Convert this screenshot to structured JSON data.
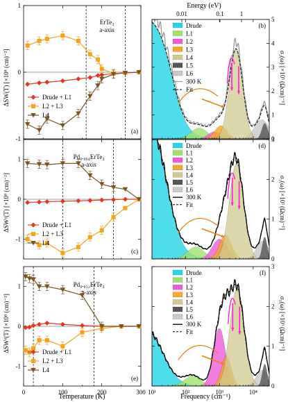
{
  "figure": {
    "left_xlabel": "Temperature (K)",
    "right_xlabel": "Frequency (cm⁻¹)",
    "top_axis_label": "Energy (eV)",
    "top_ticks": [
      "0.01",
      "0.1",
      "1"
    ],
    "left_ylabel": "ΔSW(T) [×10⁸ (cm)⁻²]",
    "left_ylabel_alt": "ΔSWᵈ(T) [×10⁸ (cm)⁻²]",
    "right_ylabel": "σ₁(ω) [×10³ (Ωcm)⁻¹]",
    "temp_ticks": [
      "0",
      "100",
      "200",
      "300"
    ],
    "freq_ticks": [
      "10¹",
      "10²",
      "10³",
      "10⁴"
    ]
  },
  "colors": {
    "drude_l1": "#e8341f",
    "l2_l3": "#f5a21e",
    "l4": "#7a5523",
    "drude_fill": "#22d6e6",
    "l1_fill": "#9fe26a",
    "l2_fill": "#ee5cd8",
    "l3_fill": "#f5a623",
    "l4_fill": "#cfc98f",
    "l5_fill": "#555555",
    "l6_fill": "#c8c8c8",
    "arrow_magenta": "#ff1ed2",
    "arrow_orange": "#f07f10"
  },
  "chart_data": [
    {
      "type": "scatter",
      "panel": "(a)",
      "title": "ErTe₃",
      "subtitle": "a-axis",
      "xlabel": "Temperature (K)",
      "ylabel": "ΔSW(T) [×10⁸ (cm)⁻²]",
      "xlim": [
        0,
        300
      ],
      "ylim": [
        -1,
        1
      ],
      "yticks": [
        "1",
        "0",
        "-1"
      ],
      "vlines": [
        160,
        260
      ],
      "series": [
        {
          "name": "Drude + L1",
          "x": [
            10,
            40,
            60,
            100,
            140,
            170,
            190,
            200,
            230,
            260,
            295
          ],
          "y": [
            -0.18,
            -0.16,
            -0.15,
            -0.13,
            -0.1,
            -0.08,
            -0.05,
            -0.04,
            -0.02,
            -0.01,
            0.0
          ]
        },
        {
          "name": "L2 + L3",
          "x": [
            10,
            40,
            60,
            100,
            140,
            170,
            190,
            200,
            230,
            260,
            295
          ],
          "y": [
            0.4,
            0.47,
            0.5,
            0.55,
            0.47,
            0.27,
            0.19,
            0.05,
            -0.02,
            -0.01,
            0.0
          ]
        },
        {
          "name": "L4",
          "x": [
            10,
            40,
            60,
            100,
            140,
            170,
            190,
            200,
            230,
            260,
            295
          ],
          "y": [
            -0.78,
            -0.87,
            -0.7,
            -0.8,
            -0.62,
            -0.36,
            -0.2,
            -0.1,
            -0.03,
            -0.01,
            0.0
          ]
        }
      ]
    },
    {
      "type": "scatter",
      "panel": "(c)",
      "title": "Pd₀.₀₀₄ErTe₃",
      "subtitle": "a-axis",
      "xlabel": "Temperature (K)",
      "ylabel": "ΔSWᵈ(T) [×10⁸ (cm)⁻²]",
      "xlim": [
        0,
        300
      ],
      "ylim": [
        -1.5,
        1.5
      ],
      "yticks": [
        "1",
        "0",
        "-1"
      ],
      "vlines": [
        100,
        230
      ],
      "series": [
        {
          "name": "Drude + L1",
          "x": [
            10,
            40,
            60,
            100,
            140,
            170,
            200,
            230,
            260,
            295
          ],
          "y": [
            -0.08,
            -0.07,
            -0.06,
            -0.05,
            -0.04,
            -0.03,
            -0.02,
            -0.01,
            0.0,
            0.0
          ]
        },
        {
          "name": "L2 + L3",
          "x": [
            10,
            40,
            60,
            100,
            140,
            170,
            200,
            230,
            260,
            295
          ],
          "y": [
            -1.0,
            -1.15,
            -1.1,
            -1.35,
            -1.2,
            -0.95,
            -0.78,
            -0.45,
            -0.22,
            0.0
          ]
        },
        {
          "name": "L4",
          "x": [
            10,
            40,
            60,
            100,
            140,
            170,
            200,
            230,
            260,
            295
          ],
          "y": [
            0.9,
            0.88,
            0.87,
            0.9,
            0.9,
            0.6,
            0.38,
            0.3,
            0.25,
            0.0
          ]
        }
      ]
    },
    {
      "type": "scatter",
      "panel": "(e)",
      "title": "Pd₀.₀₁₂ErTe₃",
      "subtitle": "a-axis",
      "xlabel": "Temperature (K)",
      "ylabel": "ΔSWᵈ(T) [×10⁸ (cm)⁻²]",
      "xlim": [
        0,
        300
      ],
      "ylim": [
        -1.5,
        1.5
      ],
      "yticks": [
        "1",
        "0",
        "-1"
      ],
      "vlines": [
        25,
        180
      ],
      "series": [
        {
          "name": "Drude + L1",
          "x": [
            5,
            15,
            25,
            40,
            60,
            100,
            150,
            200,
            250,
            295
          ],
          "y": [
            -0.03,
            -0.02,
            0.02,
            0.05,
            0.08,
            0.05,
            0.02,
            0.0,
            0.0,
            0.0
          ]
        },
        {
          "name": "L2 + L3",
          "x": [
            5,
            15,
            25,
            40,
            60,
            100,
            150,
            200,
            250,
            295
          ],
          "y": [
            -0.6,
            -0.65,
            -0.55,
            -0.35,
            -0.35,
            -0.5,
            -0.15,
            -0.05,
            0.0,
            0.0
          ]
        },
        {
          "name": "L4",
          "x": [
            5,
            15,
            25,
            40,
            60,
            100,
            150,
            200,
            250,
            295
          ],
          "y": [
            1.25,
            1.2,
            1.18,
            1.0,
            1.0,
            0.92,
            0.78,
            0.0,
            0.0,
            0.0
          ]
        }
      ]
    },
    {
      "type": "area",
      "panel": "(b)",
      "xlabel": "Frequency (cm⁻¹)",
      "ylabel": "σ₁(ω) [×10³ (Ωcm)⁻¹]",
      "xscale": "log",
      "xlim": [
        10,
        30000
      ],
      "ylim": [
        0,
        5
      ],
      "yticks": [
        "0",
        "1",
        "2",
        "3",
        "4",
        "5"
      ],
      "legend": [
        "Drude",
        "L1",
        "L2",
        "L3",
        "L4",
        "L5",
        "L6",
        "300 K",
        "Fit"
      ],
      "components": [
        {
          "name": "Drude",
          "kind": "drude",
          "amp": 5.2,
          "width": 40
        },
        {
          "name": "L1",
          "kind": "peak",
          "amp": 0.45,
          "center": 250,
          "sigma": 0.35
        },
        {
          "name": "L2",
          "kind": "peak",
          "amp": 0.3,
          "center": 700,
          "sigma": 0.25
        },
        {
          "name": "L3",
          "kind": "peak",
          "amp": 0.55,
          "center": 1100,
          "sigma": 0.25
        },
        {
          "name": "L4",
          "kind": "peak",
          "amp": 3.75,
          "center": 3100,
          "sigma": 0.28
        },
        {
          "name": "L5",
          "kind": "peak",
          "amp": 0.65,
          "center": 22000,
          "sigma": 0.12
        },
        {
          "name": "L6",
          "kind": "peak",
          "amp": 0.8,
          "center": 18000,
          "sigma": 0.3
        }
      ]
    },
    {
      "type": "area",
      "panel": "(d)",
      "xlabel": "Frequency (cm⁻¹)",
      "ylabel": "σ₁(ω) [×10³ (Ωcm)⁻¹]",
      "xscale": "log",
      "xlim": [
        10,
        30000
      ],
      "ylim": [
        0,
        3
      ],
      "yticks": [
        "0",
        "1",
        "2",
        "3"
      ],
      "legend": [
        "Drude",
        "L1",
        "L2",
        "L3",
        "L4",
        "L5",
        "L6",
        "300 K",
        "Fit"
      ],
      "components": [
        {
          "name": "Drude",
          "kind": "drude",
          "amp": 3.8,
          "width": 28
        },
        {
          "name": "L1",
          "kind": "peak",
          "amp": 0.3,
          "center": 200,
          "sigma": 0.35
        },
        {
          "name": "L2",
          "kind": "peak",
          "amp": 0.5,
          "center": 1000,
          "sigma": 0.3
        },
        {
          "name": "L3",
          "kind": "peak",
          "amp": 0.6,
          "center": 1500,
          "sigma": 0.25
        },
        {
          "name": "L4",
          "kind": "peak",
          "amp": 2.4,
          "center": 3200,
          "sigma": 0.3
        },
        {
          "name": "L5",
          "kind": "peak",
          "amp": 0.55,
          "center": 22000,
          "sigma": 0.1
        },
        {
          "name": "L6",
          "kind": "peak",
          "amp": 0.45,
          "center": 19000,
          "sigma": 0.25
        }
      ]
    },
    {
      "type": "area",
      "panel": "(f)",
      "xlabel": "Frequency (cm⁻¹)",
      "ylabel": "σ₁(ω) [×10³ (Ωcm)⁻¹]",
      "xscale": "log",
      "xlim": [
        10,
        30000
      ],
      "ylim": [
        0,
        3
      ],
      "yticks": [
        "0",
        "1",
        "2",
        "3"
      ],
      "legend": [
        "Drude",
        "L1",
        "L2",
        "L3",
        "L4",
        "L5",
        "L6",
        "300 K",
        "Fit"
      ],
      "components": [
        {
          "name": "Drude",
          "kind": "drude",
          "amp": 1.6,
          "width": 22
        },
        {
          "name": "L1",
          "kind": "peak",
          "amp": 0.25,
          "center": 160,
          "sigma": 0.35
        },
        {
          "name": "L2",
          "kind": "peak",
          "amp": 1.45,
          "center": 1000,
          "sigma": 0.25
        },
        {
          "name": "L3",
          "kind": "peak",
          "amp": 0.75,
          "center": 1600,
          "sigma": 0.2
        },
        {
          "name": "L4",
          "kind": "peak",
          "amp": 2.45,
          "center": 3300,
          "sigma": 0.3
        },
        {
          "name": "L5",
          "kind": "peak",
          "amp": 0.55,
          "center": 22000,
          "sigma": 0.1
        },
        {
          "name": "L6",
          "kind": "peak",
          "amp": 0.4,
          "center": 19000,
          "sigma": 0.25
        }
      ]
    }
  ]
}
